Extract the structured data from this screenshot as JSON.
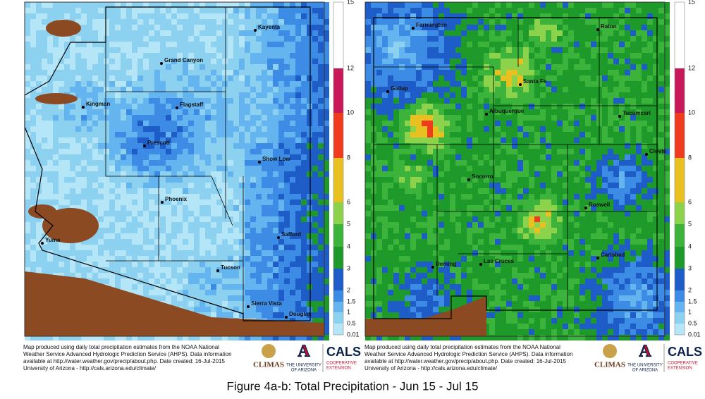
{
  "maps": [
    {
      "cities": [
        "Kayenta",
        "Grand Canyon",
        "Kingman",
        "Flagstaff",
        "Prescott",
        "Show Low",
        "Phoenix",
        "Yuma",
        "Safford",
        "Tucson",
        "Sierra Vista",
        "Douglas"
      ]
    },
    {
      "cities": [
        "Farmington",
        "Raton",
        "Gallup",
        "Santa Fe",
        "Albuquerque",
        "Tucumcari",
        "Clovis",
        "Socorro",
        "Roswell",
        "Carlsbad",
        "Deming",
        "Las Cruces"
      ]
    }
  ],
  "legend": {
    "ticks": [
      "15",
      "12",
      "10",
      "8",
      "6",
      "5",
      "4",
      "3",
      "2",
      "1.5",
      "1",
      "0.5",
      "0.01"
    ],
    "colors": [
      "#ffffff",
      "#c8185a",
      "#f03c1e",
      "#e8c020",
      "#8cd24a",
      "#3cb43c",
      "#1e9a2a",
      "#1e5cc8",
      "#3c8ce6",
      "#64b4f0",
      "#8cd2f0",
      "#b4e6f8"
    ]
  },
  "credit": [
    "Map produced using daily total precipitation estimates from the NOAA National",
    "Weather Service Advanced Hydrologic Prediction Service (AHPS). Data information",
    "available at http://water.weather.gov/precip/about.php. Date created: 16-Jul-2015",
    "University of Arizona - http://cals.arizona.edu/climate/"
  ],
  "logos": {
    "climas": "CLIMAS",
    "university": [
      "THE UNIVERSITY",
      "OF ARIZONA"
    ],
    "cals": "CALS",
    "extension": [
      "COOPERATIVE",
      "EXTENSION"
    ]
  },
  "caption": "Figure 4a-b: Total  Precipitation - Jun 15 - Jul 15"
}
